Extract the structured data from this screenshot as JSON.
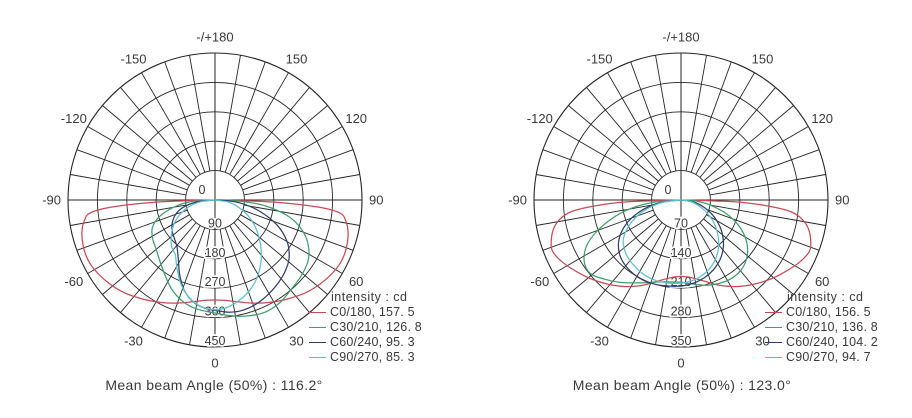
{
  "page": {
    "background": "#ffffff",
    "grid_color": "#262626",
    "text_color": "#3a3a3a"
  },
  "chart_data": [
    {
      "type": "polar-line",
      "title": "",
      "angle_unit": "deg",
      "radial_axis_max": 450,
      "radial_tick_labels": [
        "0",
        "90",
        "180",
        "270",
        "360",
        "450"
      ],
      "angle_ticks": [
        {
          "angle": 180,
          "label": "-/+180"
        },
        {
          "angle": -150,
          "label": "-150"
        },
        {
          "angle": 150,
          "label": "150"
        },
        {
          "angle": -120,
          "label": "-120"
        },
        {
          "angle": 120,
          "label": "120"
        },
        {
          "angle": -90,
          "label": "-90"
        },
        {
          "angle": 90,
          "label": "90"
        },
        {
          "angle": -60,
          "label": "-60"
        },
        {
          "angle": 60,
          "label": "60"
        },
        {
          "angle": -30,
          "label": "-30"
        },
        {
          "angle": 30,
          "label": "30"
        },
        {
          "angle": 0,
          "label": "0"
        }
      ],
      "legend_title": "intensity : cd",
      "series": [
        {
          "name": "C0/180",
          "legend_label": "C0/180, 157. 5",
          "peak_cd": 157.5,
          "color": "#c74b55",
          "points": [
            [
              -90,
              0
            ],
            [
              -88,
              180
            ],
            [
              -86,
              320
            ],
            [
              -84,
              385
            ],
            [
              -81,
              405
            ],
            [
              -77,
              418
            ],
            [
              -72,
              426
            ],
            [
              -66,
              430
            ],
            [
              -60,
              426
            ],
            [
              -52,
              413
            ],
            [
              -44,
              396
            ],
            [
              -36,
              375
            ],
            [
              -28,
              355
            ],
            [
              -20,
              336
            ],
            [
              -12,
              318
            ],
            [
              -6,
              309
            ],
            [
              0,
              306
            ],
            [
              6,
              309
            ],
            [
              12,
              318
            ],
            [
              20,
              336
            ],
            [
              28,
              355
            ],
            [
              36,
              375
            ],
            [
              44,
              396
            ],
            [
              52,
              413
            ],
            [
              60,
              426
            ],
            [
              66,
              430
            ],
            [
              72,
              426
            ],
            [
              77,
              418
            ],
            [
              81,
              405
            ],
            [
              84,
              385
            ],
            [
              86,
              320
            ],
            [
              88,
              180
            ],
            [
              90,
              0
            ]
          ]
        },
        {
          "name": "C30/210",
          "legend_label": "C30/210, 126. 8",
          "peak_cd": 126.8,
          "color": "#3f9e6e",
          "points": [
            [
              -90,
              0
            ],
            [
              -86,
              75
            ],
            [
              -80,
              130
            ],
            [
              -73,
              180
            ],
            [
              -66,
              210
            ],
            [
              -58,
              225
            ],
            [
              -50,
              235
            ],
            [
              -42,
              252
            ],
            [
              -34,
              275
            ],
            [
              -26,
              303
            ],
            [
              -18,
              325
            ],
            [
              -10,
              338
            ],
            [
              0,
              346
            ],
            [
              8,
              358
            ],
            [
              16,
              369
            ],
            [
              24,
              376
            ],
            [
              32,
              372
            ],
            [
              40,
              360
            ],
            [
              48,
              352
            ],
            [
              56,
              342
            ],
            [
              63,
              322
            ],
            [
              70,
              288
            ],
            [
              77,
              235
            ],
            [
              83,
              160
            ],
            [
              87,
              85
            ],
            [
              90,
              0
            ]
          ]
        },
        {
          "name": "C60/240",
          "legend_label": "C60/240, 95. 3",
          "peak_cd": 95.3,
          "color": "#2c3f6b",
          "points": [
            [
              -90,
              0
            ],
            [
              -84,
              55
            ],
            [
              -77,
              100
            ],
            [
              -70,
              128
            ],
            [
              -62,
              148
            ],
            [
              -54,
              162
            ],
            [
              -46,
              172
            ],
            [
              -39,
              185
            ],
            [
              -32,
              212
            ],
            [
              -25,
              255
            ],
            [
              -18,
              296
            ],
            [
              -11,
              322
            ],
            [
              -5,
              333
            ],
            [
              0,
              338
            ],
            [
              7,
              346
            ],
            [
              14,
              348
            ],
            [
              22,
              342
            ],
            [
              30,
              331
            ],
            [
              38,
              318
            ],
            [
              45,
              305
            ],
            [
              52,
              288
            ],
            [
              60,
              255
            ],
            [
              68,
              205
            ],
            [
              76,
              140
            ],
            [
              83,
              80
            ],
            [
              88,
              30
            ],
            [
              90,
              0
            ]
          ]
        },
        {
          "name": "C90/270",
          "legend_label": "C90/270, 85. 3",
          "peak_cd": 85.3,
          "color": "#5fc0cd",
          "points": [
            [
              -90,
              0
            ],
            [
              -83,
              45
            ],
            [
              -75,
              85
            ],
            [
              -67,
              118
            ],
            [
              -59,
              148
            ],
            [
              -51,
              172
            ],
            [
              -43,
              195
            ],
            [
              -36,
              207
            ],
            [
              -29,
              240
            ],
            [
              -22,
              278
            ],
            [
              -15,
              308
            ],
            [
              -8,
              328
            ],
            [
              0,
              336
            ],
            [
              7,
              330
            ],
            [
              14,
              315
            ],
            [
              21,
              296
            ],
            [
              28,
              272
            ],
            [
              35,
              243
            ],
            [
              42,
              212
            ],
            [
              49,
              180
            ],
            [
              57,
              145
            ],
            [
              65,
              110
            ],
            [
              73,
              75
            ],
            [
              81,
              42
            ],
            [
              90,
              0
            ]
          ]
        }
      ],
      "caption": "Mean beam Angle (50%) : 116.2°"
    },
    {
      "type": "polar-line",
      "title": "",
      "angle_unit": "deg",
      "radial_axis_max": 350,
      "radial_tick_labels": [
        "0",
        "70",
        "140",
        "210",
        "280",
        "350"
      ],
      "angle_ticks": [
        {
          "angle": 180,
          "label": "-/+180"
        },
        {
          "angle": -150,
          "label": "-150"
        },
        {
          "angle": 150,
          "label": "150"
        },
        {
          "angle": -120,
          "label": "-120"
        },
        {
          "angle": 120,
          "label": "120"
        },
        {
          "angle": -90,
          "label": "-90"
        },
        {
          "angle": 90,
          "label": "90"
        },
        {
          "angle": -60,
          "label": "-60"
        },
        {
          "angle": 60,
          "label": "60"
        },
        {
          "angle": -30,
          "label": "-30"
        },
        {
          "angle": 30,
          "label": "30"
        },
        {
          "angle": 0,
          "label": "0"
        }
      ],
      "legend_title": "intensity : cd",
      "series": [
        {
          "name": "C0/180",
          "legend_label": "C0/180, 156. 5",
          "peak_cd": 156.5,
          "color": "#c74b55",
          "points": [
            [
              -90,
              0
            ],
            [
              -88,
              130
            ],
            [
              -86,
              210
            ],
            [
              -84,
              262
            ],
            [
              -81,
              292
            ],
            [
              -77,
              312
            ],
            [
              -72,
              325
            ],
            [
              -68,
              329
            ],
            [
              -62,
              318
            ],
            [
              -55,
              300
            ],
            [
              -48,
              283
            ],
            [
              -40,
              263
            ],
            [
              -32,
              243
            ],
            [
              -24,
              222
            ],
            [
              -16,
              201
            ],
            [
              -8,
              187
            ],
            [
              0,
              182
            ],
            [
              8,
              187
            ],
            [
              16,
              201
            ],
            [
              24,
              222
            ],
            [
              32,
              243
            ],
            [
              40,
              263
            ],
            [
              48,
              283
            ],
            [
              55,
              300
            ],
            [
              62,
              318
            ],
            [
              68,
              329
            ],
            [
              72,
              325
            ],
            [
              77,
              312
            ],
            [
              81,
              292
            ],
            [
              84,
              262
            ],
            [
              86,
              210
            ],
            [
              88,
              130
            ],
            [
              90,
              0
            ]
          ]
        },
        {
          "name": "C30/210",
          "legend_label": "C30/210, 136. 8",
          "peak_cd": 136.8,
          "color": "#3f9e6e",
          "points": [
            [
              -90,
              0
            ],
            [
              -85,
              70
            ],
            [
              -79,
              135
            ],
            [
              -72,
              195
            ],
            [
              -65,
              245
            ],
            [
              -58,
              272
            ],
            [
              -51,
              278
            ],
            [
              -44,
              262
            ],
            [
              -37,
              245
            ],
            [
              -30,
              228
            ],
            [
              -22,
              212
            ],
            [
              -14,
              201
            ],
            [
              -6,
              196
            ],
            [
              0,
              196
            ],
            [
              8,
              202
            ],
            [
              16,
              211
            ],
            [
              24,
              218
            ],
            [
              32,
              222
            ],
            [
              40,
              220
            ],
            [
              48,
              210
            ],
            [
              56,
              190
            ],
            [
              64,
              160
            ],
            [
              72,
              120
            ],
            [
              80,
              72
            ],
            [
              86,
              35
            ],
            [
              90,
              0
            ]
          ]
        },
        {
          "name": "C60/240",
          "legend_label": "C60/240, 104. 2",
          "peak_cd": 104.2,
          "color": "#2c3f6b",
          "points": [
            [
              -90,
              0
            ],
            [
              -83,
              50
            ],
            [
              -76,
              92
            ],
            [
              -69,
              130
            ],
            [
              -62,
              160
            ],
            [
              -55,
              182
            ],
            [
              -48,
              196
            ],
            [
              -41,
              204
            ],
            [
              -33,
              209
            ],
            [
              -25,
              211
            ],
            [
              -17,
              210
            ],
            [
              -9,
              207
            ],
            [
              0,
              205
            ],
            [
              9,
              200
            ],
            [
              17,
              193
            ],
            [
              25,
              183
            ],
            [
              33,
              170
            ],
            [
              41,
              153
            ],
            [
              49,
              132
            ],
            [
              57,
              108
            ],
            [
              65,
              82
            ],
            [
              73,
              56
            ],
            [
              81,
              30
            ],
            [
              90,
              0
            ]
          ]
        },
        {
          "name": "C90/270",
          "legend_label": "C90/270, 94. 7",
          "peak_cd": 94.7,
          "color": "#5fc0cd",
          "points": [
            [
              -90,
              0
            ],
            [
              -83,
              42
            ],
            [
              -76,
              80
            ],
            [
              -69,
              115
            ],
            [
              -62,
              145
            ],
            [
              -55,
              168
            ],
            [
              -48,
              180
            ],
            [
              -41,
              188
            ],
            [
              -33,
              194
            ],
            [
              -25,
              199
            ],
            [
              -17,
              201
            ],
            [
              -9,
              200
            ],
            [
              0,
              198
            ],
            [
              9,
              193
            ],
            [
              17,
              185
            ],
            [
              25,
              173
            ],
            [
              33,
              157
            ],
            [
              41,
              137
            ],
            [
              49,
              114
            ],
            [
              57,
              90
            ],
            [
              65,
              65
            ],
            [
              73,
              42
            ],
            [
              81,
              22
            ],
            [
              90,
              0
            ]
          ]
        }
      ],
      "caption": "Mean beam Angle (50%) : 123.0°"
    }
  ]
}
